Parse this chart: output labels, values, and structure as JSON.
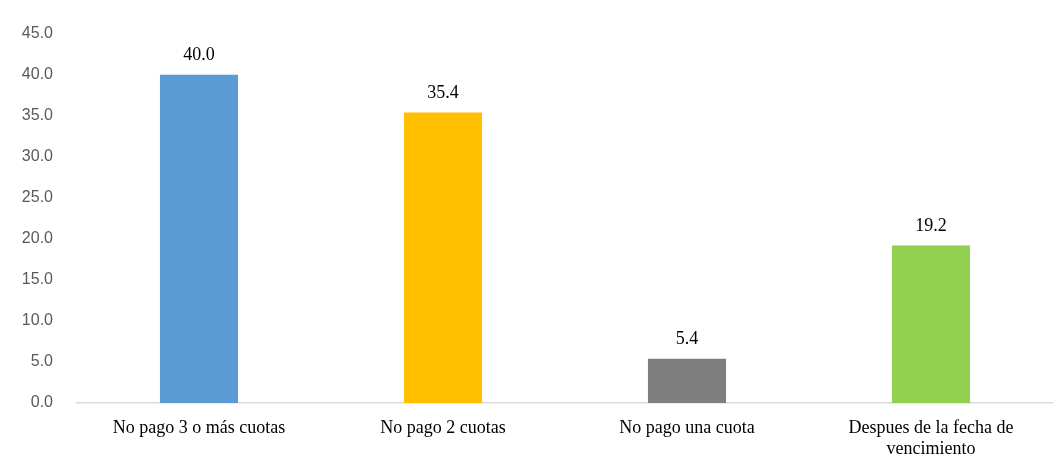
{
  "chart_data": {
    "type": "bar",
    "categories": [
      "No pago 3 o más cuotas",
      "No pago 2 cuotas",
      "No pago una cuota",
      "Despues de la fecha de vencimiento"
    ],
    "values": [
      40.0,
      35.4,
      5.4,
      19.2
    ],
    "colors": [
      "#5b9bd5",
      "#ffc000",
      "#7f7f7f",
      "#92d050"
    ],
    "value_labels": [
      "40.0",
      "35.4",
      "5.4",
      "19.2"
    ],
    "ylim": [
      0,
      45
    ],
    "yticks": [
      {
        "value": 0,
        "label": "0.0"
      },
      {
        "value": 5,
        "label": "5.0"
      },
      {
        "value": 10,
        "label": "10.0"
      },
      {
        "value": 15,
        "label": "15.0"
      },
      {
        "value": 20,
        "label": "20.0"
      },
      {
        "value": 25,
        "label": "25.0"
      },
      {
        "value": 30,
        "label": "30.0"
      },
      {
        "value": 35,
        "label": "35.0"
      },
      {
        "value": 40,
        "label": "40.0"
      },
      {
        "value": 45,
        "label": "45.0"
      }
    ],
    "grid": false,
    "legend": false
  }
}
